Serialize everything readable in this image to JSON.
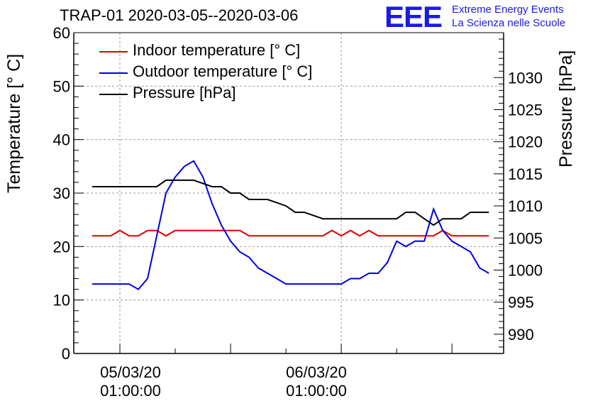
{
  "chart_data": {
    "type": "line",
    "title": "TRAP-01 2020-03-05--2020-03-06",
    "ylabel_left": "Temperature [° C]",
    "ylabel_right": "Pressure [hPa]",
    "ylim_left": [
      0,
      60
    ],
    "yticks_left": [
      0,
      10,
      20,
      30,
      40,
      50,
      60
    ],
    "ylim_right": [
      987,
      1037
    ],
    "yticks_right": [
      990,
      995,
      1000,
      1005,
      1010,
      1015,
      1020,
      1025,
      1030
    ],
    "xlim_hours": [
      -2.5,
      20.8
    ],
    "xtick_labels": [
      {
        "hour": 0,
        "date": "05/03/20",
        "time": "01:00:00"
      },
      {
        "hour": 12,
        "date": "06/03/20",
        "time": "01:00:00"
      }
    ],
    "grid": true,
    "legend_position": "top-left",
    "series": [
      {
        "name": "Indoor temperature [° C]",
        "axis": "left",
        "color": "#e00000",
        "x": [
          -1.5,
          -0.5,
          0,
          0.5,
          1,
          1.5,
          2,
          2.5,
          3,
          3.5,
          4,
          5,
          6,
          6.5,
          7,
          8,
          9,
          10,
          11,
          11.5,
          12,
          12.5,
          13,
          13.5,
          14,
          15,
          16,
          17,
          17.5,
          18,
          19,
          20
        ],
        "y": [
          22,
          22,
          23,
          22,
          22,
          23,
          23,
          22,
          23,
          23,
          23,
          23,
          23,
          23,
          22,
          22,
          22,
          22,
          22,
          23,
          22,
          23,
          22,
          23,
          22,
          22,
          22,
          22,
          23,
          22,
          22,
          22
        ]
      },
      {
        "name": "Outdoor temperature [° C]",
        "axis": "left",
        "color": "#0000e0",
        "x": [
          -1.5,
          -0.5,
          0,
          0.5,
          1,
          1.5,
          2,
          2.5,
          3,
          3.5,
          4,
          4.5,
          5,
          5.5,
          6,
          6.5,
          7,
          7.5,
          8,
          8.5,
          9,
          10,
          11,
          12,
          12.5,
          13,
          13.5,
          14,
          14.5,
          15,
          15.5,
          16,
          16.5,
          17,
          17.5,
          18,
          18.5,
          19,
          19.5,
          20
        ],
        "y": [
          13,
          13,
          13,
          13,
          12,
          14,
          22,
          30,
          33,
          35,
          36,
          33,
          28,
          24,
          21,
          19,
          18,
          16,
          15,
          14,
          13,
          13,
          13,
          13,
          14,
          14,
          15,
          15,
          17,
          21,
          20,
          21,
          21,
          27,
          23,
          21,
          20,
          19,
          16,
          15
        ]
      },
      {
        "name": "Pressure [hPa]",
        "axis": "right",
        "color": "#000000",
        "x": [
          -1.5,
          2,
          2.5,
          4,
          5,
          5.5,
          6,
          6.5,
          7,
          8,
          9,
          9.5,
          10,
          11,
          12,
          13,
          14,
          15,
          15.5,
          16,
          16.5,
          17,
          17.5,
          18,
          18.5,
          19,
          19.5,
          20
        ],
        "y": [
          1013,
          1013,
          1014,
          1014,
          1013,
          1013,
          1012,
          1012,
          1011,
          1011,
          1010,
          1009,
          1009,
          1008,
          1008,
          1008,
          1008,
          1008,
          1009,
          1009,
          1008,
          1007,
          1008,
          1008,
          1008,
          1009,
          1009,
          1009
        ]
      }
    ]
  },
  "logo": {
    "mark": "EEE",
    "line1": "Extreme Energy Events",
    "line2": "La Scienza nelle Scuole",
    "color": "#1a1ae6"
  }
}
